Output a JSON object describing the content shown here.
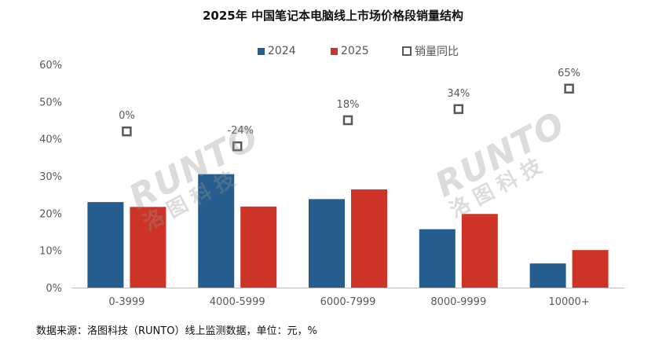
{
  "title": "2025年 中国笔记本电脑线上市场价格段销量结构",
  "legend": {
    "series_2024": "2024",
    "series_2025": "2025",
    "yoy": "销量同比"
  },
  "source_note": "数据来源：洛图科技（RUNTO）线上监测数据，单位：元，%",
  "watermark": {
    "en": "RUNTO",
    "cn": "洛图科技"
  },
  "colors": {
    "series_2024": "#255E8E",
    "series_2025": "#CD3326",
    "yoy_marker": "#595959"
  },
  "chart_data": {
    "type": "bar",
    "categories": [
      "0-3999",
      "4000-5999",
      "6000-7999",
      "8000-9999",
      "10000+"
    ],
    "series": [
      {
        "name": "2024",
        "values": [
          23,
          30.5,
          23.8,
          15.7,
          6.5
        ]
      },
      {
        "name": "2025",
        "values": [
          21.7,
          21.8,
          26.4,
          19.8,
          10.1
        ]
      }
    ],
    "yoy": {
      "name": "销量同比",
      "labels": [
        "0%",
        "-24%",
        "18%",
        "34%",
        "65%"
      ],
      "marker_positions": [
        42,
        38,
        45,
        48,
        53.5
      ]
    },
    "y_tick_labels": [
      "0%",
      "10%",
      "20%",
      "30%",
      "40%",
      "50%",
      "60%"
    ],
    "ylim": [
      0,
      60
    ],
    "grid": false,
    "legend_position": "top"
  }
}
